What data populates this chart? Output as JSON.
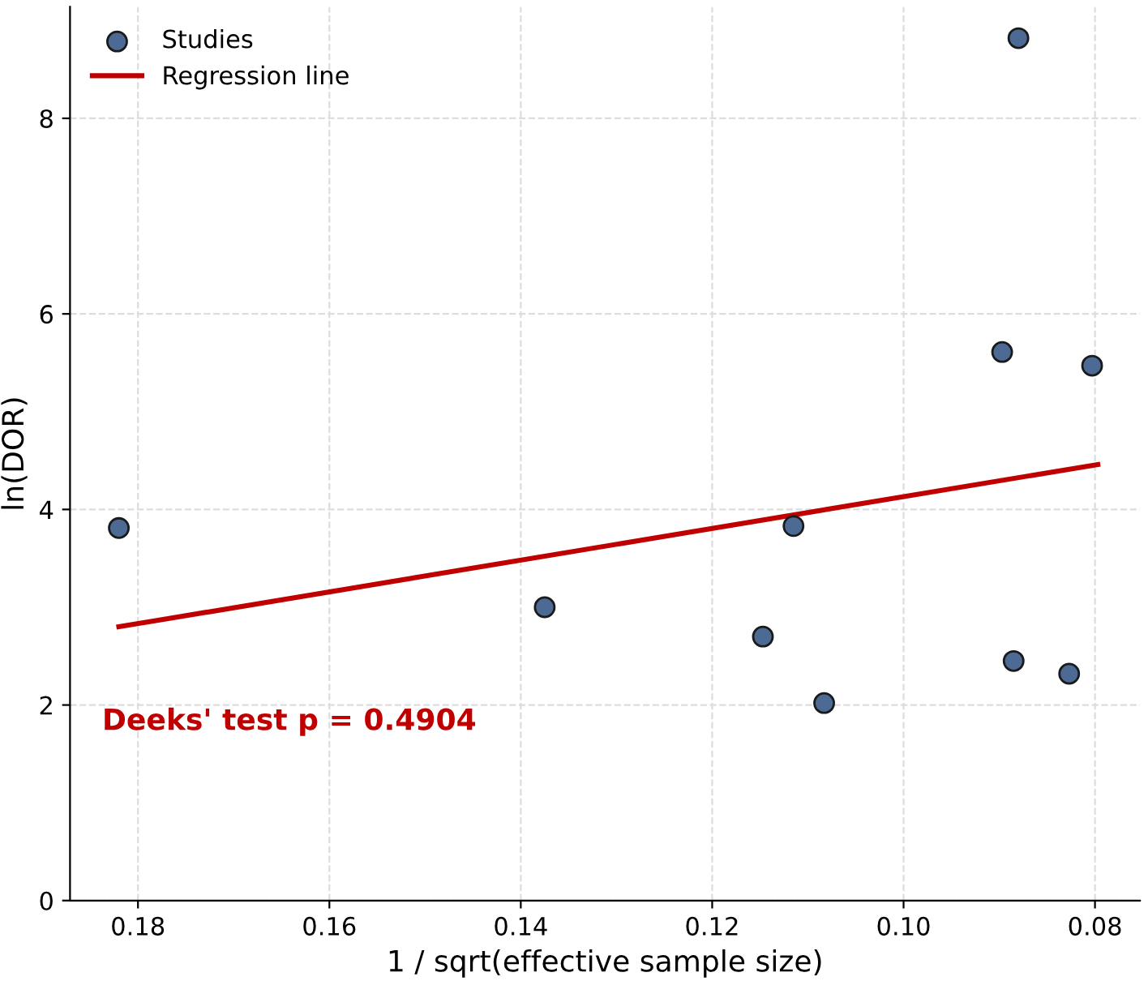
{
  "chart_data": {
    "type": "scatter",
    "xlabel": "1 / sqrt(effective sample size)",
    "ylabel": "ln(DOR)",
    "xlim": [
      0.1871,
      0.0753
    ],
    "ylim": [
      0,
      9.14
    ],
    "xticks": [
      {
        "value": 0.18,
        "label": "0.18"
      },
      {
        "value": 0.16,
        "label": "0.16"
      },
      {
        "value": 0.14,
        "label": "0.14"
      },
      {
        "value": 0.12,
        "label": "0.12"
      },
      {
        "value": 0.1,
        "label": "0.10"
      },
      {
        "value": 0.08,
        "label": "0.08"
      }
    ],
    "yticks": [
      0,
      2,
      4,
      6,
      8
    ],
    "grid": true,
    "legend": "top left",
    "series": [
      {
        "name": "Studies",
        "color": "#4c6a94",
        "marker": "circle",
        "x": [
          0.182,
          0.1375,
          0.1147,
          0.1115,
          0.1083,
          0.0897,
          0.0885,
          0.088,
          0.0827,
          0.0803
        ],
        "values": [
          3.81,
          3.0,
          2.7,
          3.83,
          2.02,
          5.61,
          2.45,
          8.82,
          2.32,
          5.47
        ]
      },
      {
        "name": "Regression line",
        "type": "line",
        "color": "#c00000",
        "line_style": "solid",
        "x": [
          0.182,
          0.0797
        ],
        "values": [
          2.8,
          4.46
        ]
      }
    ],
    "annotations": [
      "Deeks' test p = 0.4904"
    ]
  }
}
